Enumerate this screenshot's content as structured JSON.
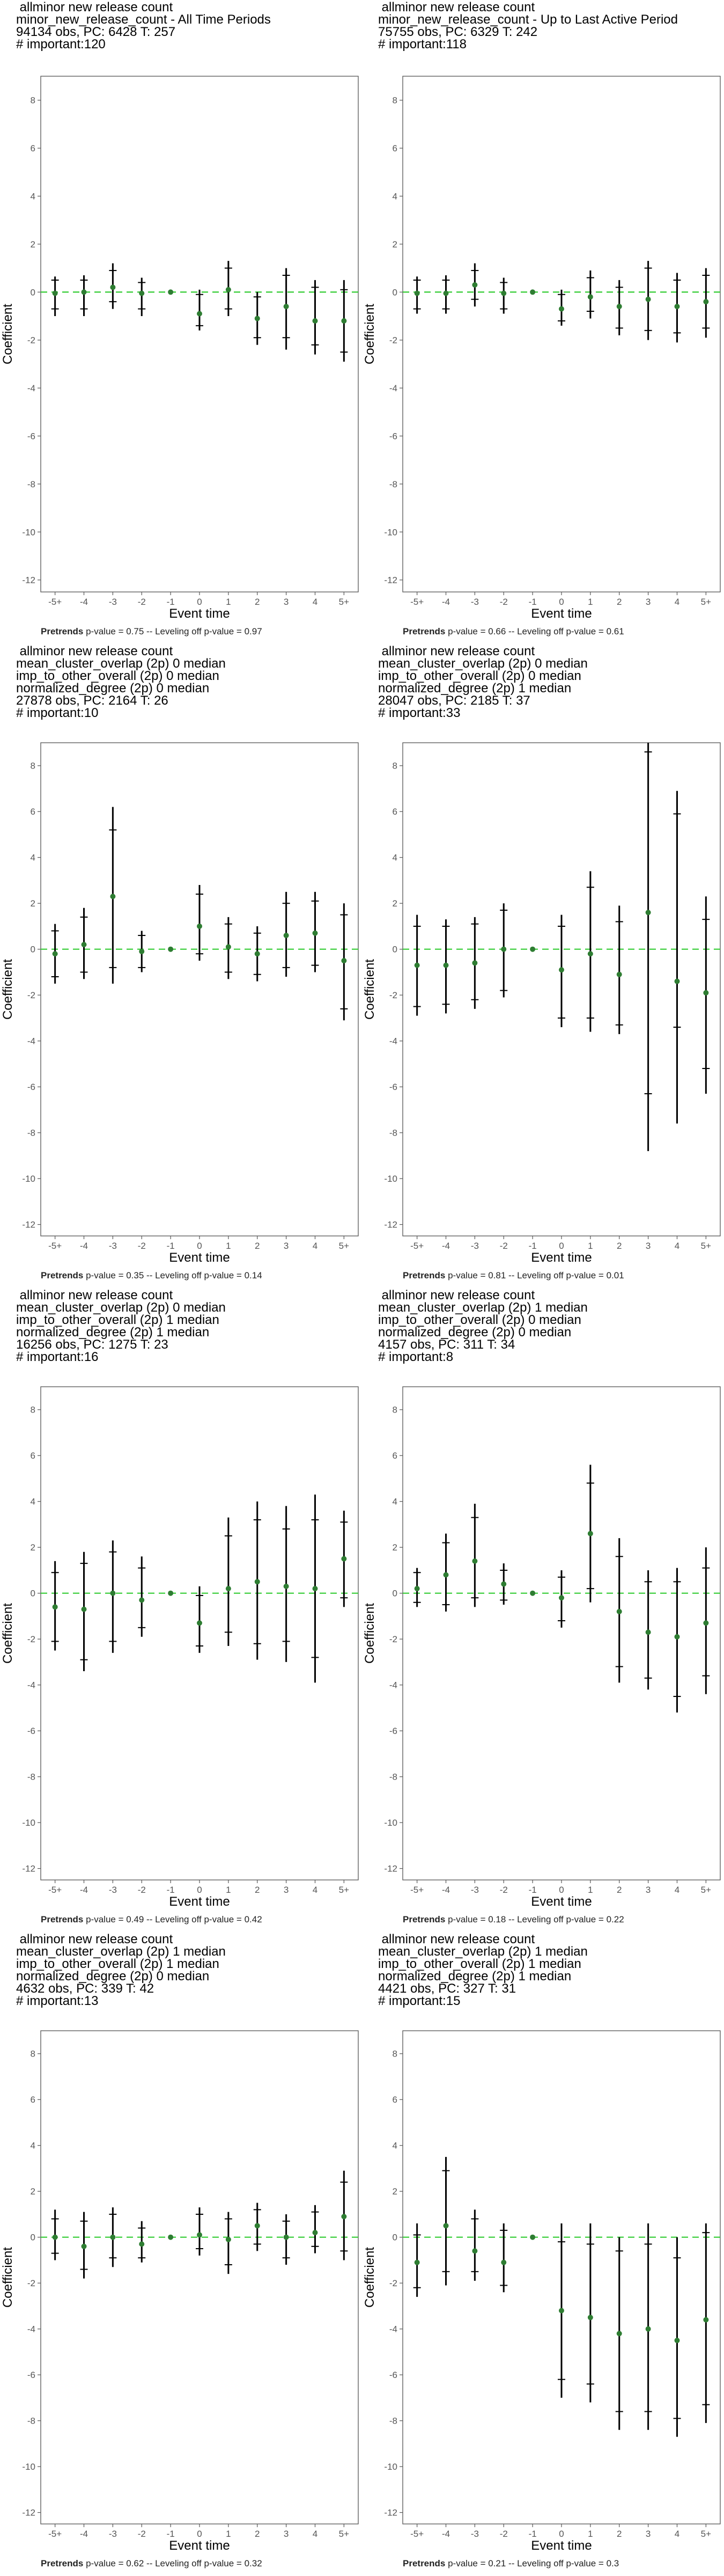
{
  "chart_data": [
    {
      "type": "event_study",
      "title_lines": [
        " allminor new release count",
        "minor_new_release_count - All Time Periods",
        "94134 obs, PC: 6428 T: 257",
        "# important:120"
      ],
      "xlabel": "Event time",
      "ylabel": "Coefficient",
      "categories": [
        "-5+",
        "-4",
        "-3",
        "-2",
        "-1",
        "0",
        "1",
        "2",
        "3",
        "4",
        "5+"
      ],
      "ylim": [
        -12.5,
        9
      ],
      "yticks": [
        -12,
        -10,
        -8,
        -6,
        -4,
        -2,
        0,
        2,
        4,
        6,
        8
      ],
      "estimates": [
        -0.05,
        0.0,
        0.2,
        -0.05,
        0.0,
        -0.9,
        0.1,
        -1.1,
        -0.6,
        -1.2,
        -1.2
      ],
      "ci95": [
        [
          -1.0,
          0.65
        ],
        [
          -1.0,
          0.7
        ],
        [
          -0.7,
          1.2
        ],
        [
          -1.0,
          0.6
        ],
        [
          0,
          0
        ],
        [
          -1.6,
          0.1
        ],
        [
          -1.0,
          1.3
        ],
        [
          -2.2,
          0.0
        ],
        [
          -2.4,
          1.0
        ],
        [
          -2.6,
          0.5
        ],
        [
          -2.9,
          0.5
        ]
      ],
      "ci90": [
        [
          -0.7,
          0.5
        ],
        [
          -0.7,
          0.5
        ],
        [
          -0.4,
          0.9
        ],
        [
          -0.7,
          0.4
        ],
        [
          0,
          0
        ],
        [
          -1.4,
          -0.1
        ],
        [
          -0.7,
          1.0
        ],
        [
          -1.9,
          -0.2
        ],
        [
          -1.9,
          0.7
        ],
        [
          -2.2,
          0.2
        ],
        [
          -2.5,
          0.1
        ]
      ],
      "reference_line": 0,
      "footer_bold": "Pretrends",
      "footer_rest": " p-value = 0.75 -- Leveling off p-value = 0.97"
    },
    {
      "type": "event_study",
      "title_lines": [
        " allminor new release count",
        "minor_new_release_count - Up to Last Active Period",
        "75755 obs, PC: 6329 T: 242",
        "# important:118"
      ],
      "xlabel": "Event time",
      "ylabel": "Coefficient",
      "categories": [
        "-5+",
        "-4",
        "-3",
        "-2",
        "-1",
        "0",
        "1",
        "2",
        "3",
        "4",
        "5+"
      ],
      "ylim": [
        -12.5,
        9
      ],
      "yticks": [
        -12,
        -10,
        -8,
        -6,
        -4,
        -2,
        0,
        2,
        4,
        6,
        8
      ],
      "estimates": [
        -0.05,
        -0.05,
        0.3,
        -0.05,
        0.0,
        -0.7,
        -0.2,
        -0.6,
        -0.3,
        -0.6,
        -0.4
      ],
      "ci95": [
        [
          -0.9,
          0.65
        ],
        [
          -0.9,
          0.7
        ],
        [
          -0.6,
          1.2
        ],
        [
          -0.9,
          0.6
        ],
        [
          0,
          0
        ],
        [
          -1.4,
          0.1
        ],
        [
          -1.1,
          0.9
        ],
        [
          -1.8,
          0.5
        ],
        [
          -2.0,
          1.3
        ],
        [
          -2.1,
          0.8
        ],
        [
          -1.9,
          1.0
        ]
      ],
      "ci90": [
        [
          -0.7,
          0.5
        ],
        [
          -0.7,
          0.5
        ],
        [
          -0.3,
          0.9
        ],
        [
          -0.7,
          0.4
        ],
        [
          0,
          0
        ],
        [
          -1.2,
          -0.1
        ],
        [
          -0.8,
          0.6
        ],
        [
          -1.5,
          0.2
        ],
        [
          -1.6,
          1.0
        ],
        [
          -1.7,
          0.5
        ],
        [
          -1.5,
          0.7
        ]
      ],
      "reference_line": 0,
      "footer_bold": "Pretrends",
      "footer_rest": " p-value = 0.66 -- Leveling off p-value = 0.61"
    },
    {
      "type": "event_study",
      "title_lines": [
        " allminor new release count",
        "mean_cluster_overlap (2p) 0 median",
        "imp_to_other_overall (2p) 0 median",
        "normalized_degree (2p) 0 median",
        "27878 obs, PC: 2164 T: 26",
        "# important:10"
      ],
      "xlabel": "Event time",
      "ylabel": "Coefficient",
      "categories": [
        "-5+",
        "-4",
        "-3",
        "-2",
        "-1",
        "0",
        "1",
        "2",
        "3",
        "4",
        "5+"
      ],
      "ylim": [
        -12.5,
        9
      ],
      "yticks": [
        -12,
        -10,
        -8,
        -6,
        -4,
        -2,
        0,
        2,
        4,
        6,
        8
      ],
      "estimates": [
        -0.2,
        0.2,
        2.3,
        -0.1,
        0.0,
        1.0,
        0.1,
        -0.2,
        0.6,
        0.7,
        -0.5
      ],
      "ci95": [
        [
          -1.5,
          1.1
        ],
        [
          -1.3,
          1.8
        ],
        [
          -1.5,
          6.2
        ],
        [
          -1.0,
          0.8
        ],
        [
          0,
          0
        ],
        [
          -0.5,
          2.8
        ],
        [
          -1.3,
          1.4
        ],
        [
          -1.4,
          1.0
        ],
        [
          -1.2,
          2.5
        ],
        [
          -1.0,
          2.5
        ],
        [
          -3.1,
          2.0
        ]
      ],
      "ci90": [
        [
          -1.2,
          0.8
        ],
        [
          -1.0,
          1.4
        ],
        [
          -0.8,
          5.2
        ],
        [
          -0.8,
          0.6
        ],
        [
          0,
          0
        ],
        [
          -0.2,
          2.4
        ],
        [
          -1.0,
          1.1
        ],
        [
          -1.1,
          0.7
        ],
        [
          -0.8,
          2.0
        ],
        [
          -0.7,
          2.1
        ],
        [
          -2.6,
          1.5
        ]
      ],
      "reference_line": 0,
      "footer_bold": "Pretrends",
      "footer_rest": " p-value = 0.35 -- Leveling off p-value = 0.14"
    },
    {
      "type": "event_study",
      "title_lines": [
        " allminor new release count",
        "mean_cluster_overlap (2p) 0 median",
        "imp_to_other_overall (2p) 0 median",
        "normalized_degree (2p) 1 median",
        "28047 obs, PC: 2185 T: 37",
        "# important:33"
      ],
      "xlabel": "Event time",
      "ylabel": "Coefficient",
      "categories": [
        "-5+",
        "-4",
        "-3",
        "-2",
        "-1",
        "0",
        "1",
        "2",
        "3",
        "4",
        "5+"
      ],
      "ylim": [
        -12.5,
        9
      ],
      "yticks": [
        -12,
        -10,
        -8,
        -6,
        -4,
        -2,
        0,
        2,
        4,
        6,
        8
      ],
      "estimates": [
        -0.7,
        -0.7,
        -0.6,
        0.0,
        0.0,
        -0.9,
        -0.2,
        -1.1,
        1.6,
        -1.4,
        -1.9
      ],
      "ci95": [
        [
          -2.9,
          1.5
        ],
        [
          -2.8,
          1.3
        ],
        [
          -2.6,
          1.4
        ],
        [
          -2.1,
          2.0
        ],
        [
          0,
          0
        ],
        [
          -3.4,
          1.5
        ],
        [
          -3.6,
          3.4
        ],
        [
          -3.7,
          1.9
        ],
        [
          -8.8,
          9.0
        ],
        [
          -7.6,
          6.9
        ],
        [
          -6.3,
          2.3
        ]
      ],
      "ci90": [
        [
          -2.5,
          1.0
        ],
        [
          -2.4,
          1.0
        ],
        [
          -2.2,
          1.1
        ],
        [
          -1.8,
          1.7
        ],
        [
          0,
          0
        ],
        [
          -3.0,
          1.0
        ],
        [
          -3.0,
          2.7
        ],
        [
          -3.3,
          1.2
        ],
        [
          -6.3,
          8.6
        ],
        [
          -3.4,
          5.9
        ],
        [
          -5.2,
          1.3
        ]
      ],
      "reference_line": 0,
      "footer_bold": "Pretrends",
      "footer_rest": " p-value = 0.81 -- Leveling off p-value = 0.01"
    },
    {
      "type": "event_study",
      "title_lines": [
        " allminor new release count",
        "mean_cluster_overlap (2p) 0 median",
        "imp_to_other_overall (2p) 1 median",
        "normalized_degree (2p) 1 median",
        "16256 obs, PC: 1275 T: 23",
        "# important:16"
      ],
      "xlabel": "Event time",
      "ylabel": "Coefficient",
      "categories": [
        "-5+",
        "-4",
        "-3",
        "-2",
        "-1",
        "0",
        "1",
        "2",
        "3",
        "4",
        "5+"
      ],
      "ylim": [
        -12.5,
        9
      ],
      "yticks": [
        -12,
        -10,
        -8,
        -6,
        -4,
        -2,
        0,
        2,
        4,
        6,
        8
      ],
      "estimates": [
        -0.6,
        -0.7,
        0.0,
        -0.3,
        0.0,
        -1.3,
        0.2,
        0.5,
        0.3,
        0.2,
        1.5
      ],
      "ci95": [
        [
          -2.5,
          1.4
        ],
        [
          -3.4,
          1.8
        ],
        [
          -2.6,
          2.3
        ],
        [
          -1.9,
          1.6
        ],
        [
          0,
          0
        ],
        [
          -2.6,
          0.3
        ],
        [
          -2.3,
          3.3
        ],
        [
          -2.9,
          4.0
        ],
        [
          -3.0,
          3.8
        ],
        [
          -3.9,
          4.3
        ],
        [
          -0.6,
          3.6
        ]
      ],
      "ci90": [
        [
          -2.1,
          0.9
        ],
        [
          -2.9,
          1.3
        ],
        [
          -2.1,
          1.8
        ],
        [
          -1.5,
          1.1
        ],
        [
          0,
          0
        ],
        [
          -2.3,
          -0.1
        ],
        [
          -1.7,
          2.5
        ],
        [
          -2.2,
          3.2
        ],
        [
          -2.1,
          2.8
        ],
        [
          -2.8,
          3.2
        ],
        [
          -0.2,
          3.1
        ]
      ],
      "reference_line": 0,
      "footer_bold": "Pretrends",
      "footer_rest": " p-value = 0.49 -- Leveling off p-value = 0.42"
    },
    {
      "type": "event_study",
      "title_lines": [
        " allminor new release count",
        "mean_cluster_overlap (2p) 1 median",
        "imp_to_other_overall (2p) 0 median",
        "normalized_degree (2p) 0 median",
        "4157 obs, PC: 311 T: 34",
        "# important:8"
      ],
      "xlabel": "Event time",
      "ylabel": "Coefficient",
      "categories": [
        "-5+",
        "-4",
        "-3",
        "-2",
        "-1",
        "0",
        "1",
        "2",
        "3",
        "4",
        "5+"
      ],
      "ylim": [
        -12.5,
        9
      ],
      "yticks": [
        -12,
        -10,
        -8,
        -6,
        -4,
        -2,
        0,
        2,
        4,
        6,
        8
      ],
      "estimates": [
        0.2,
        0.8,
        1.4,
        0.4,
        0.0,
        -0.2,
        2.6,
        -0.8,
        -1.7,
        -1.9,
        -1.3
      ],
      "ci95": [
        [
          -0.6,
          1.1
        ],
        [
          -0.8,
          2.6
        ],
        [
          -0.6,
          3.9
        ],
        [
          -0.5,
          1.3
        ],
        [
          0,
          0
        ],
        [
          -1.5,
          1.0
        ],
        [
          -0.4,
          5.6
        ],
        [
          -3.9,
          2.4
        ],
        [
          -4.2,
          1.0
        ],
        [
          -5.2,
          1.1
        ],
        [
          -4.4,
          2.0
        ]
      ],
      "ci90": [
        [
          -0.4,
          0.9
        ],
        [
          -0.5,
          2.2
        ],
        [
          -0.2,
          3.3
        ],
        [
          -0.3,
          1.0
        ],
        [
          0,
          0
        ],
        [
          -1.2,
          0.7
        ],
        [
          0.2,
          4.8
        ],
        [
          -3.2,
          1.6
        ],
        [
          -3.7,
          0.5
        ],
        [
          -4.5,
          0.5
        ],
        [
          -3.6,
          1.1
        ]
      ],
      "reference_line": 0,
      "footer_bold": "Pretrends",
      "footer_rest": " p-value = 0.18 -- Leveling off p-value = 0.22"
    },
    {
      "type": "event_study",
      "title_lines": [
        " allminor new release count",
        "mean_cluster_overlap (2p) 1 median",
        "imp_to_other_overall (2p) 1 median",
        "normalized_degree (2p) 0 median",
        "4632 obs, PC: 339 T: 42",
        "# important:13"
      ],
      "xlabel": "Event time",
      "ylabel": "Coefficient",
      "categories": [
        "-5+",
        "-4",
        "-3",
        "-2",
        "-1",
        "0",
        "1",
        "2",
        "3",
        "4",
        "5+"
      ],
      "ylim": [
        -12.5,
        9
      ],
      "yticks": [
        -12,
        -10,
        -8,
        -6,
        -4,
        -2,
        0,
        2,
        4,
        6,
        8
      ],
      "estimates": [
        0.0,
        -0.4,
        0.0,
        -0.3,
        0.0,
        0.1,
        -0.1,
        0.5,
        0.0,
        0.2,
        0.9
      ],
      "ci95": [
        [
          -1.0,
          1.2
        ],
        [
          -1.8,
          1.1
        ],
        [
          -1.3,
          1.3
        ],
        [
          -1.1,
          0.7
        ],
        [
          0,
          0
        ],
        [
          -0.8,
          1.3
        ],
        [
          -1.6,
          1.1
        ],
        [
          -0.6,
          1.5
        ],
        [
          -1.2,
          1.0
        ],
        [
          -0.7,
          1.4
        ],
        [
          -1.0,
          2.9
        ]
      ],
      "ci90": [
        [
          -0.7,
          0.8
        ],
        [
          -1.4,
          0.7
        ],
        [
          -0.9,
          1.0
        ],
        [
          -0.9,
          0.4
        ],
        [
          0,
          0
        ],
        [
          -0.5,
          1.0
        ],
        [
          -1.2,
          0.8
        ],
        [
          -0.3,
          1.2
        ],
        [
          -0.9,
          0.7
        ],
        [
          -0.4,
          1.1
        ],
        [
          -0.6,
          2.4
        ]
      ],
      "reference_line": 0,
      "footer_bold": "Pretrends",
      "footer_rest": " p-value = 0.62 -- Leveling off p-value = 0.32"
    },
    {
      "type": "event_study",
      "title_lines": [
        " allminor new release count",
        "mean_cluster_overlap (2p) 1 median",
        "imp_to_other_overall (2p) 1 median",
        "normalized_degree (2p) 1 median",
        "4421 obs, PC: 327 T: 31",
        "# important:15"
      ],
      "xlabel": "Event time",
      "ylabel": "Coefficient",
      "categories": [
        "-5+",
        "-4",
        "-3",
        "-2",
        "-1",
        "0",
        "1",
        "2",
        "3",
        "4",
        "5+"
      ],
      "ylim": [
        -12.5,
        9
      ],
      "yticks": [
        -12,
        -10,
        -8,
        -6,
        -4,
        -2,
        0,
        2,
        4,
        6,
        8
      ],
      "estimates": [
        -1.1,
        0.5,
        -0.6,
        -1.1,
        0.0,
        -3.2,
        -3.5,
        -4.2,
        -4.0,
        -4.5,
        -3.6
      ],
      "ci95": [
        [
          -2.6,
          0.6
        ],
        [
          -2.1,
          3.5
        ],
        [
          -1.9,
          1.2
        ],
        [
          -2.4,
          0.6
        ],
        [
          0,
          0
        ],
        [
          -7.0,
          0.6
        ],
        [
          -7.2,
          0.6
        ],
        [
          -8.4,
          0.0
        ],
        [
          -8.4,
          0.6
        ],
        [
          -8.7,
          0.0
        ],
        [
          -8.1,
          0.6
        ]
      ],
      "ci90": [
        [
          -2.2,
          0.1
        ],
        [
          -1.5,
          2.9
        ],
        [
          -1.5,
          0.8
        ],
        [
          -2.1,
          0.3
        ],
        [
          0,
          0
        ],
        [
          -6.2,
          -0.2
        ],
        [
          -6.4,
          -0.3
        ],
        [
          -7.6,
          -0.6
        ],
        [
          -7.6,
          -0.3
        ],
        [
          -7.9,
          -0.9
        ],
        [
          -7.3,
          0.2
        ]
      ],
      "reference_line": 0,
      "footer_bold": "Pretrends",
      "footer_rest": " p-value = 0.21 -- Leveling off p-value = 0.3"
    }
  ],
  "colors": {
    "point": "#2e7d32",
    "errorbar": "#000000",
    "reference_line": "#33cc33",
    "frame": "#555555"
  }
}
